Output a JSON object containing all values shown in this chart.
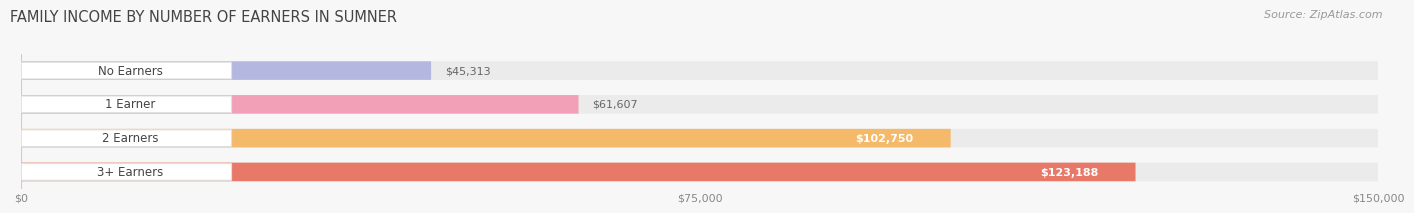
{
  "title": "FAMILY INCOME BY NUMBER OF EARNERS IN SUMNER",
  "source": "Source: ZipAtlas.com",
  "categories": [
    "No Earners",
    "1 Earner",
    "2 Earners",
    "3+ Earners"
  ],
  "values": [
    45313,
    61607,
    102750,
    123188
  ],
  "value_labels": [
    "$45,313",
    "$61,607",
    "$102,750",
    "$123,188"
  ],
  "bar_colors": [
    "#b4b8e0",
    "#f2a0b8",
    "#f5b96a",
    "#e87868"
  ],
  "bar_bg_color": "#ebebeb",
  "x_ticks": [
    0,
    75000,
    150000
  ],
  "x_tick_labels": [
    "$0",
    "$75,000",
    "$150,000"
  ],
  "xlim": [
    0,
    150000
  ],
  "background_color": "#f7f7f7",
  "title_fontsize": 10.5,
  "source_fontsize": 8,
  "bar_label_fontsize": 8.5,
  "value_label_fontsize": 8,
  "tick_fontsize": 8,
  "value_inside_color": "#ffffff",
  "value_outside_color": "#666666"
}
